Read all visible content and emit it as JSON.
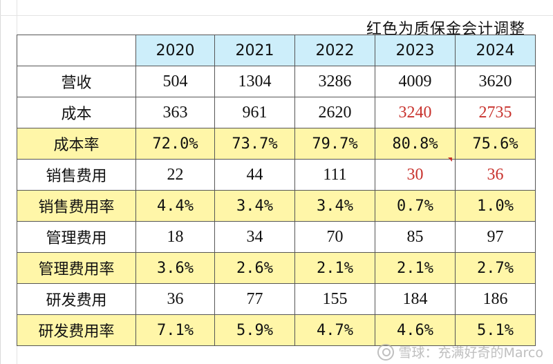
{
  "note": "红色为质保金会计调整",
  "table": {
    "years": [
      "2020",
      "2021",
      "2022",
      "2023",
      "2024"
    ],
    "rows": [
      {
        "label": "营收",
        "values": [
          "504",
          "1304",
          "3286",
          "4009",
          "3620"
        ],
        "rate": false,
        "red": [
          false,
          false,
          false,
          false,
          false
        ]
      },
      {
        "label": "成本",
        "values": [
          "363",
          "961",
          "2620",
          "3240",
          "2735"
        ],
        "rate": false,
        "red": [
          false,
          false,
          false,
          true,
          true
        ]
      },
      {
        "label": "成本率",
        "values": [
          "72.0%",
          "73.7%",
          "79.7%",
          "80.8%",
          "75.6%"
        ],
        "rate": true,
        "red": [
          false,
          false,
          false,
          false,
          false
        ]
      },
      {
        "label": "销售费用",
        "values": [
          "22",
          "44",
          "111",
          "30",
          "36"
        ],
        "rate": false,
        "red": [
          false,
          false,
          false,
          true,
          true
        ]
      },
      {
        "label": "销售费用率",
        "values": [
          "4.4%",
          "3.4%",
          "3.4%",
          "0.7%",
          "1.0%"
        ],
        "rate": true,
        "red": [
          false,
          false,
          false,
          false,
          false
        ]
      },
      {
        "label": "管理费用",
        "values": [
          "18",
          "34",
          "70",
          "85",
          "97"
        ],
        "rate": false,
        "red": [
          false,
          false,
          false,
          false,
          false
        ]
      },
      {
        "label": "管理费用率",
        "values": [
          "3.6%",
          "2.6%",
          "2.1%",
          "2.1%",
          "2.7%"
        ],
        "rate": true,
        "red": [
          false,
          false,
          false,
          false,
          false
        ]
      },
      {
        "label": "研发费用",
        "values": [
          "36",
          "77",
          "155",
          "184",
          "186"
        ],
        "rate": false,
        "red": [
          false,
          false,
          false,
          false,
          false
        ]
      },
      {
        "label": "研发费用率",
        "values": [
          "7.1%",
          "5.9%",
          "4.7%",
          "4.6%",
          "5.1%"
        ],
        "rate": true,
        "red": [
          false,
          false,
          false,
          false,
          false
        ]
      }
    ]
  },
  "colors": {
    "header_fill": "#cdeefa",
    "rate_fill": "#fff6a8",
    "adjusted_text": "#c8322d"
  },
  "watermark": "雪球：充满好奇的Marco"
}
